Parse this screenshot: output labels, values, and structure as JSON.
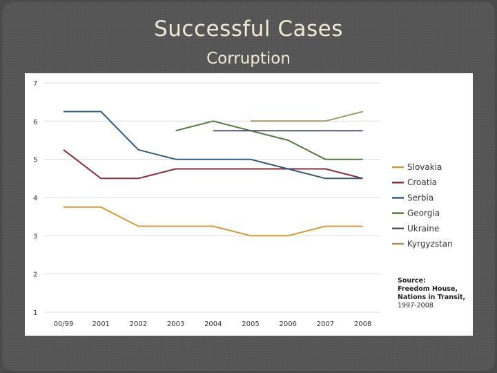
{
  "slide": {
    "title": "Successful Cases",
    "subtitle": "Corruption"
  },
  "chart_data": {
    "type": "line",
    "categories": [
      "00/99",
      "2001",
      "2002",
      "2003",
      "2004",
      "2005",
      "2006",
      "2007",
      "2008"
    ],
    "ylim": [
      1,
      7
    ],
    "yticks": [
      1,
      2,
      3,
      4,
      5,
      6,
      7
    ],
    "grid": true,
    "legend_position": "right",
    "series": [
      {
        "name": "Slovakia",
        "color": "#d29a38",
        "values": [
          3.75,
          3.75,
          3.25,
          3.25,
          3.25,
          3.0,
          3.0,
          3.25,
          3.25
        ]
      },
      {
        "name": "Croatia",
        "color": "#8b2b35",
        "values": [
          5.25,
          4.5,
          4.5,
          4.75,
          4.75,
          4.75,
          4.75,
          4.75,
          4.5
        ]
      },
      {
        "name": "Serbia",
        "color": "#2f5b80",
        "values": [
          6.25,
          6.25,
          5.25,
          5.0,
          5.0,
          5.0,
          4.75,
          4.5,
          4.5
        ]
      },
      {
        "name": "Georgia",
        "color": "#4f7a3d",
        "values": [
          null,
          null,
          null,
          5.75,
          6.0,
          5.75,
          5.5,
          5.0,
          5.0
        ]
      },
      {
        "name": "Ukraine",
        "color": "#56516e",
        "values": [
          null,
          null,
          null,
          null,
          5.75,
          5.75,
          5.75,
          5.75,
          5.75
        ]
      },
      {
        "name": "Kyrgyzstan",
        "color": "#a59563",
        "values": [
          null,
          null,
          null,
          null,
          null,
          6.0,
          6.0,
          6.0,
          6.25
        ]
      }
    ],
    "source": [
      "Source:",
      "Freedom House,",
      "Nations in Transit,",
      "1997-2008"
    ]
  }
}
